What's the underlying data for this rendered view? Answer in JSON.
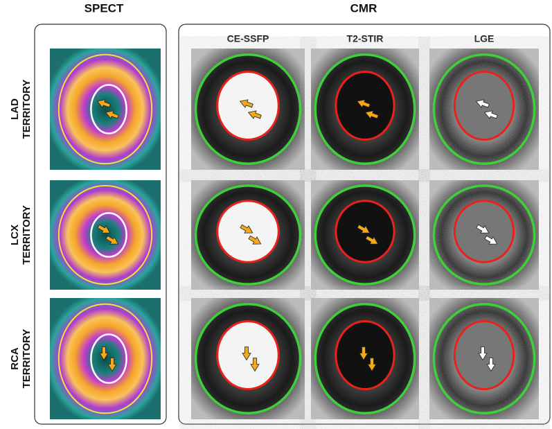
{
  "header": {
    "left": "SPECT",
    "right": "CMR"
  },
  "columns": [
    "CE-SSFP",
    "T2-STIR",
    "LGE"
  ],
  "rows": [
    {
      "name": "LAD",
      "suffix": "TERRITORY"
    },
    {
      "name": "LCX",
      "suffix": "TERRITORY"
    },
    {
      "name": "RCA",
      "suffix": "TERRITORY"
    }
  ]
}
